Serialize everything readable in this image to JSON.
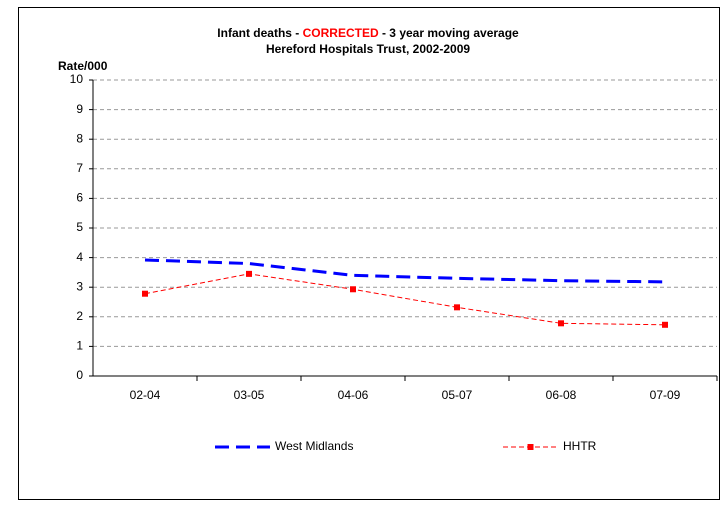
{
  "chart_data": {
    "type": "line",
    "title": [
      {
        "text": "Infant deaths - ",
        "color": "#000000"
      },
      {
        "text": "CORRECTED",
        "color": "#ff0000"
      },
      {
        "text": " -  3 year moving average",
        "color": "#000000"
      }
    ],
    "subtitle": "Hereford Hospitals Trust, 2002-2009",
    "y_label": "Rate/000",
    "categories": [
      "02-04",
      "03-05",
      "04-06",
      "05-07",
      "06-08",
      "07-09"
    ],
    "series": [
      {
        "name": "West Midlands",
        "color": "#0000ff",
        "values": [
          3.92,
          3.8,
          3.4,
          3.3,
          3.22,
          3.18
        ]
      },
      {
        "name": "HHTR",
        "color": "#ff0000",
        "values": [
          2.78,
          3.45,
          2.93,
          2.32,
          1.78,
          1.73
        ]
      }
    ],
    "ylim": [
      0,
      10
    ],
    "yticks": [
      0,
      1,
      2,
      3,
      4,
      5,
      6,
      7,
      8,
      9,
      10
    ],
    "grid": true,
    "legend": "bottom"
  }
}
